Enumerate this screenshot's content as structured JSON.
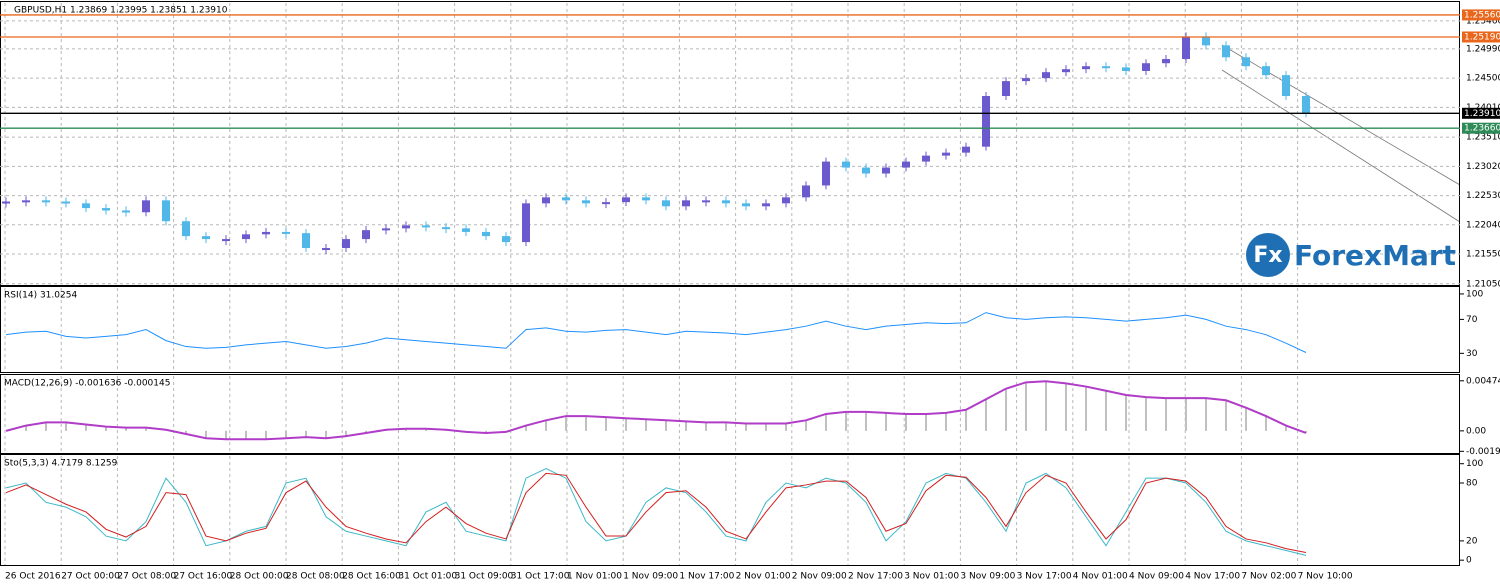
{
  "chart_data": [
    {
      "type": "candlestick",
      "title": "GBPUSD,H1  1.23869 1.23995 1.23851 1.23910",
      "ylim": [
        1.2103,
        1.2576
      ],
      "yticks": [
        {
          "value": 1.2546,
          "label": "1.25460"
        },
        {
          "value": 1.2499,
          "label": "1.24990"
        },
        {
          "value": 1.245,
          "label": "1.24500"
        },
        {
          "value": 1.2401,
          "label": "1.24010"
        },
        {
          "value": 1.2351,
          "label": "1.23510"
        },
        {
          "value": 1.2302,
          "label": "1.23020"
        },
        {
          "value": 1.2253,
          "label": "1.22530"
        },
        {
          "value": 1.2204,
          "label": "1.22040"
        },
        {
          "value": 1.2155,
          "label": "1.21550"
        },
        {
          "value": 1.2105,
          "label": "1.21050"
        }
      ],
      "levels": [
        {
          "value": 1.2556,
          "label": "1.25560",
          "color": "#e8671c"
        },
        {
          "value": 1.2519,
          "label": "1.25190",
          "color": "#e8671c"
        },
        {
          "value": 1.2391,
          "label": "1.23910",
          "color": "#000000"
        },
        {
          "value": 1.2366,
          "label": "1.23660",
          "color": "#2e8b57"
        }
      ],
      "color_up": "#6a5acd",
      "color_down": "#4fb8e8",
      "values": [
        1.2243,
        1.2245,
        1.2243,
        1.224,
        1.2232,
        1.2228,
        1.2225,
        1.2245,
        1.221,
        1.2185,
        1.218,
        1.218,
        1.2188,
        1.2192,
        1.219,
        1.2165,
        1.2165,
        1.218,
        1.2195,
        1.2198,
        1.2203,
        1.22,
        1.2198,
        1.2192,
        1.2185,
        1.2175,
        1.224,
        1.225,
        1.2245,
        1.224,
        1.2242,
        1.225,
        1.2245,
        1.2235,
        1.2245,
        1.2245,
        1.224,
        1.2235,
        1.224,
        1.225,
        1.227,
        1.231,
        1.23,
        1.229,
        1.23,
        1.231,
        1.232,
        1.2325,
        1.2335,
        1.242,
        1.2445,
        1.245,
        1.246,
        1.2465,
        1.247,
        1.2468,
        1.2462,
        1.2475,
        1.2482,
        1.252,
        1.2505,
        1.2485,
        1.247,
        1.2455,
        1.242,
        1.2391
      ],
      "watermark_icon": "Fx",
      "watermark": "ForexMart"
    },
    {
      "type": "line",
      "title": "RSI(14) 31.0254",
      "ylim": [
        8,
        107
      ],
      "yticks": [
        100,
        70,
        30
      ],
      "series": [
        {
          "color": "#1e90ff",
          "values": [
            52,
            55,
            56,
            50,
            48,
            50,
            52,
            58,
            45,
            38,
            36,
            37,
            40,
            42,
            44,
            40,
            36,
            38,
            42,
            48,
            46,
            44,
            42,
            40,
            38,
            36,
            58,
            60,
            56,
            55,
            57,
            58,
            55,
            52,
            56,
            55,
            54,
            52,
            55,
            58,
            62,
            68,
            62,
            58,
            62,
            64,
            66,
            65,
            66,
            78,
            72,
            70,
            72,
            73,
            72,
            70,
            68,
            70,
            72,
            75,
            70,
            62,
            58,
            52,
            42,
            31
          ]
        }
      ]
    },
    {
      "type": "macd",
      "title": "MACD(12,26,9) -0.001636 -0.000145",
      "ylim": [
        -0.0021,
        0.0052
      ],
      "yticks": [
        0.004745,
        {
          "value": 0,
          "label": "0.00"
        },
        -0.00194
      ],
      "color": "#b03cc8",
      "bar_color": "#c0c0c0",
      "values": [
        0,
        0.0005,
        0.0008,
        0.0008,
        0.0006,
        0.0004,
        0.0003,
        0.0003,
        0.0001,
        -0.0003,
        -0.0007,
        -0.0008,
        -0.0008,
        -0.0008,
        -0.0007,
        -0.0006,
        -0.0007,
        -0.0005,
        -0.0002,
        0.0001,
        0.0002,
        0.0002,
        0.0001,
        -0.0001,
        -0.0002,
        -0.0001,
        0.0005,
        0.001,
        0.0014,
        0.0014,
        0.0013,
        0.0012,
        0.0011,
        0.001,
        0.0009,
        0.0008,
        0.0008,
        0.0007,
        0.0007,
        0.0007,
        0.001,
        0.0016,
        0.0018,
        0.0018,
        0.0017,
        0.0016,
        0.0016,
        0.0017,
        0.002,
        0.003,
        0.004,
        0.0046,
        0.0047,
        0.0045,
        0.0042,
        0.0038,
        0.0034,
        0.0032,
        0.0031,
        0.0031,
        0.0031,
        0.0029,
        0.0022,
        0.0014,
        0.0005,
        -0.0002
      ]
    },
    {
      "type": "line",
      "title": "Sto(5,3,3) 4.7179 8.1259",
      "ylim": [
        -5,
        108
      ],
      "yticks": [
        100,
        80,
        20,
        0
      ],
      "series": [
        {
          "color": "#3cb8c8",
          "values": [
            75,
            80,
            60,
            55,
            45,
            25,
            20,
            40,
            85,
            60,
            15,
            20,
            30,
            35,
            80,
            85,
            45,
            30,
            25,
            20,
            15,
            50,
            60,
            30,
            25,
            20,
            85,
            95,
            85,
            40,
            20,
            25,
            60,
            75,
            70,
            50,
            25,
            20,
            60,
            80,
            75,
            85,
            80,
            60,
            20,
            40,
            80,
            90,
            85,
            60,
            30,
            80,
            90,
            75,
            45,
            15,
            50,
            85,
            85,
            80,
            60,
            30,
            20,
            15,
            10,
            5
          ]
        },
        {
          "color": "#d21e1e",
          "values": [
            70,
            78,
            68,
            58,
            50,
            32,
            24,
            35,
            70,
            68,
            25,
            20,
            28,
            33,
            70,
            82,
            55,
            35,
            28,
            22,
            18,
            40,
            55,
            38,
            28,
            22,
            70,
            90,
            88,
            55,
            25,
            25,
            50,
            70,
            72,
            55,
            30,
            22,
            50,
            75,
            78,
            82,
            82,
            65,
            30,
            38,
            72,
            88,
            86,
            65,
            35,
            70,
            88,
            80,
            50,
            22,
            42,
            80,
            85,
            82,
            65,
            35,
            22,
            18,
            12,
            8
          ]
        }
      ]
    }
  ],
  "time_axis": {
    "labels": [
      "26 Oct 2016",
      "27 Oct 00:00",
      "27 Oct 08:00",
      "27 Oct 16:00",
      "28 Oct 00:00",
      "28 Oct 08:00",
      "28 Oct 16:00",
      "31 Oct 01:00",
      "31 Oct 09:00",
      "31 Oct 17:00",
      "1 Nov 01:00",
      "1 Nov 09:00",
      "1 Nov 17:00",
      "2 Nov 01:00",
      "2 Nov 09:00",
      "2 Nov 17:00",
      "3 Nov 01:00",
      "3 Nov 09:00",
      "3 Nov 17:00",
      "4 Nov 01:00",
      "4 Nov 09:00",
      "4 Nov 17:00",
      "7 Nov 02:00",
      "7 Nov 10:00"
    ]
  }
}
